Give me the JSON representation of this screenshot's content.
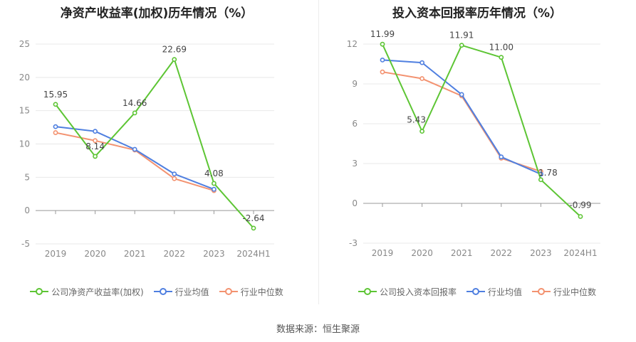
{
  "footer_source": "数据来源：恒生聚源",
  "chart_data": [
    {
      "type": "line",
      "title": "净资产收益率(加权)历年情况（%）",
      "categories": [
        "2019",
        "2020",
        "2021",
        "2022",
        "2023",
        "2024H1"
      ],
      "ylim": [
        -5,
        25
      ],
      "yticks": [
        -5,
        0,
        5,
        10,
        15,
        20,
        25
      ],
      "grid": true,
      "legend_position": "bottom",
      "series": [
        {
          "name": "公司净资产收益率(加权)",
          "color": "#5dc534",
          "values": [
            15.95,
            8.14,
            14.66,
            22.69,
            4.08,
            -2.64
          ],
          "labels": [
            "15.95",
            "8.14",
            "14.66",
            "22.69",
            "4.08",
            "-2.64"
          ]
        },
        {
          "name": "行业均值",
          "color": "#4f7fe0",
          "values": [
            12.6,
            11.9,
            9.2,
            5.5,
            3.2,
            null
          ]
        },
        {
          "name": "行业中位数",
          "color": "#f39270",
          "values": [
            11.7,
            10.5,
            9.1,
            4.8,
            3.0,
            null
          ]
        }
      ]
    },
    {
      "type": "line",
      "title": "投入资本回报率历年情况（%）",
      "categories": [
        "2019",
        "2020",
        "2021",
        "2022",
        "2023",
        "2024H1"
      ],
      "ylim": [
        -3,
        12
      ],
      "yticks": [
        -3,
        0,
        3,
        6,
        9,
        12
      ],
      "grid": true,
      "legend_position": "bottom",
      "series": [
        {
          "name": "公司投入资本回报率",
          "color": "#5dc534",
          "values": [
            11.99,
            5.43,
            11.91,
            11.0,
            1.78,
            -0.99
          ],
          "labels": [
            "11.99",
            "5.43",
            "11.91",
            "11.00",
            "1.78",
            "-0.99"
          ]
        },
        {
          "name": "行业均值",
          "color": "#4f7fe0",
          "values": [
            10.8,
            10.6,
            8.2,
            3.5,
            2.2,
            null
          ]
        },
        {
          "name": "行业中位数",
          "color": "#f39270",
          "values": [
            9.9,
            9.4,
            8.1,
            3.4,
            2.4,
            null
          ]
        }
      ]
    }
  ]
}
